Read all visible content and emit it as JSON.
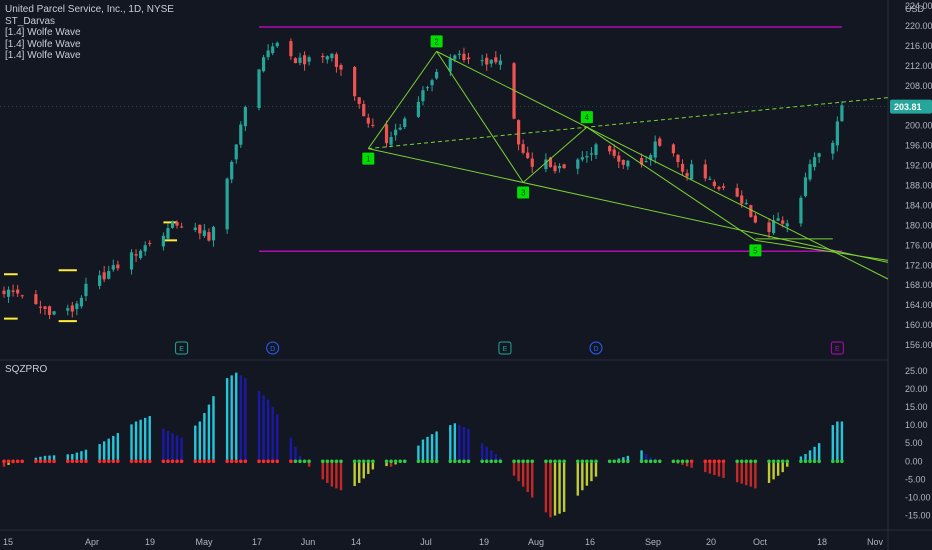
{
  "legend": {
    "title": "United Parcel Service, Inc., 1D, NYSE",
    "lines": [
      "ST_Darvas",
      "[1.4] Wolfe Wave",
      "[1.4] Wolfe Wave",
      "[1.4] Wolfe Wave"
    ]
  },
  "currency": "USD",
  "last_price": "203.81",
  "indicator_name": "SQZPRO",
  "colors": {
    "background": "#131722",
    "up": "#26a69a",
    "down": "#ef5350",
    "darvas": "#b30cb3",
    "wolfe": "#7bd132",
    "wolfe_marker": "#00e000",
    "yellow_box": "#ffeb3b",
    "sq_teal": "#26c6da",
    "sq_blue": "#1a1aa6",
    "sq_red": "#c62828",
    "sq_yellow": "#c0ca33",
    "dot_green": "#2ecc40",
    "dot_red": "#ff2b2b"
  },
  "chart_data": [
    {
      "type": "candlestick",
      "title": "United Parcel Service, Inc., 1D, NYSE",
      "ylim": [
        153,
        224
      ],
      "y_ticks": [
        224,
        220,
        216,
        212,
        208,
        204,
        200,
        196,
        192,
        188,
        184,
        180,
        176,
        172,
        168,
        164,
        160,
        156
      ],
      "x_tick_labels": [
        "15",
        "Apr",
        "19",
        "May",
        "17",
        "Jun",
        "14",
        "Jul",
        "19",
        "Aug",
        "16",
        "Sep",
        "20",
        "Oct",
        "18",
        "Nov"
      ],
      "last_price": 203.81,
      "price_path": [
        [
          0,
          166.8
        ],
        [
          4,
          166.3
        ],
        [
          8,
          163.5
        ],
        [
          12,
          162.3
        ],
        [
          15,
          163.0
        ],
        [
          18,
          167.4
        ],
        [
          22,
          170.0
        ],
        [
          26,
          172.5
        ],
        [
          30,
          175.2
        ],
        [
          34,
          178.0
        ],
        [
          38,
          180.4
        ],
        [
          40,
          179.6
        ],
        [
          44,
          179.0
        ],
        [
          45,
          176.4
        ],
        [
          48,
          185.0
        ],
        [
          50,
          192.0
        ],
        [
          52,
          200.5
        ],
        [
          54,
          207.0
        ],
        [
          57,
          214.0
        ],
        [
          60,
          216.6
        ],
        [
          62,
          213.0
        ],
        [
          65,
          213.3
        ],
        [
          68,
          212.6
        ],
        [
          72,
          214.5
        ],
        [
          75,
          209.0
        ],
        [
          78,
          203.5
        ],
        [
          81,
          200.0
        ],
        [
          84,
          196.0
        ],
        [
          86,
          199.0
        ],
        [
          90,
          204.0
        ],
        [
          93,
          207.5
        ],
        [
          96,
          211.5
        ],
        [
          99,
          214.5
        ],
        [
          101,
          214.0
        ],
        [
          103,
          213.2
        ],
        [
          106,
          212.0
        ],
        [
          108,
          213.5
        ],
        [
          110,
          212.0
        ],
        [
          113,
          196.0
        ],
        [
          116,
          191.0
        ],
        [
          119,
          192.5
        ],
        [
          122,
          191.0
        ],
        [
          125,
          192.0
        ],
        [
          129,
          195.0
        ],
        [
          131,
          199.0
        ],
        [
          133,
          195.0
        ],
        [
          136,
          193.0
        ],
        [
          140,
          192.5
        ],
        [
          143,
          196.0
        ],
        [
          145,
          197.5
        ],
        [
          148,
          193.0
        ],
        [
          150,
          190.0
        ],
        [
          152,
          193.0
        ],
        [
          155,
          188.5
        ],
        [
          158,
          187.5
        ],
        [
          161,
          186.0
        ],
        [
          163,
          184.0
        ],
        [
          165,
          180.5
        ],
        [
          167,
          178.5
        ],
        [
          170,
          181.0
        ],
        [
          172,
          181.0
        ],
        [
          174,
          183.5
        ],
        [
          176,
          189.0
        ],
        [
          178,
          194.0
        ],
        [
          180,
          195.0
        ],
        [
          182,
          197.0
        ],
        [
          184,
          203.8
        ]
      ],
      "darvas_box": {
        "top": 219.8,
        "bottom": 174.8
      },
      "darvas_yellow_levels": [
        {
          "x0": 0,
          "x1": 3,
          "y": 170.2
        },
        {
          "x0": 0,
          "x1": 3,
          "y": 161.3
        },
        {
          "x0": 12,
          "x1": 16,
          "y": 171.0
        },
        {
          "x0": 12,
          "x1": 16,
          "y": 160.8
        },
        {
          "x0": 35,
          "x1": 38,
          "y": 180.6
        },
        {
          "x0": 35,
          "x1": 38,
          "y": 177.0
        }
      ],
      "wolfe_points": [
        {
          "label": "1",
          "day": 80,
          "price": 195.4
        },
        {
          "label": "2",
          "day": 95,
          "price": 214.9
        },
        {
          "label": "3",
          "day": 114,
          "price": 188.6
        },
        {
          "label": "4",
          "day": 128,
          "price": 199.7
        },
        {
          "label": "5",
          "day": 165,
          "price": 177.0
        }
      ],
      "event_markers": [
        {
          "label": "E",
          "day": 39
        },
        {
          "label": "D",
          "day": 59
        },
        {
          "label": "E",
          "day": 110
        },
        {
          "label": "D",
          "day": 130
        },
        {
          "label": "E",
          "day": 183
        }
      ]
    },
    {
      "type": "bar",
      "title": "SQZPRO",
      "ylim": [
        -19,
        28
      ],
      "y_ticks": [
        25,
        20,
        15,
        10,
        5,
        0,
        -5,
        -10,
        -15
      ],
      "momentum_path": [
        [
          0,
          -1.5
        ],
        [
          3,
          0.0
        ],
        [
          9,
          1.5
        ],
        [
          15,
          2.0
        ],
        [
          20,
          4.0
        ],
        [
          24,
          7.0
        ],
        [
          29,
          11.0
        ],
        [
          32,
          12.5
        ],
        [
          35,
          9.0
        ],
        [
          39,
          6.5
        ],
        [
          43,
          11.0
        ],
        [
          46,
          18.0
        ],
        [
          49,
          23.0
        ],
        [
          51,
          24.5
        ],
        [
          53,
          23.0
        ],
        [
          58,
          17.0
        ],
        [
          62,
          9.0
        ],
        [
          65,
          1.5
        ],
        [
          68,
          -3.0
        ],
        [
          72,
          -7.0
        ],
        [
          75,
          -8.5
        ],
        [
          78,
          -6.0
        ],
        [
          82,
          -1.0
        ],
        [
          85,
          -1.5
        ],
        [
          89,
          1.0
        ],
        [
          92,
          6.0
        ],
        [
          96,
          9.0
        ],
        [
          99,
          10.5
        ],
        [
          102,
          9.0
        ],
        [
          105,
          5.0
        ],
        [
          108,
          2.0
        ],
        [
          110,
          0.0
        ],
        [
          112,
          -4.0
        ],
        [
          116,
          -10.0
        ],
        [
          120,
          -15.5
        ],
        [
          123,
          -14.0
        ],
        [
          127,
          -8.0
        ],
        [
          131,
          -3.0
        ],
        [
          133,
          0.0
        ],
        [
          137,
          1.5
        ],
        [
          140,
          3.0
        ],
        [
          142,
          1.0
        ],
        [
          146,
          0.0
        ],
        [
          149,
          -1.0
        ],
        [
          154,
          -3.0
        ],
        [
          159,
          -5.0
        ],
        [
          164,
          -7.0
        ],
        [
          166,
          -8.0
        ],
        [
          168,
          -6.0
        ],
        [
          171,
          -3.0
        ],
        [
          173,
          0.0
        ],
        [
          176,
          2.0
        ],
        [
          180,
          6.0
        ],
        [
          182,
          10.0
        ],
        [
          183,
          11.0
        ]
      ],
      "dot_colors_by_day": [
        {
          "from": 0,
          "to": 64,
          "color": "red"
        },
        {
          "from": 65,
          "to": 112,
          "color": "green"
        },
        {
          "from": 113,
          "to": 142,
          "color": "green"
        },
        {
          "from": 143,
          "to": 184,
          "color": "green"
        }
      ]
    }
  ]
}
